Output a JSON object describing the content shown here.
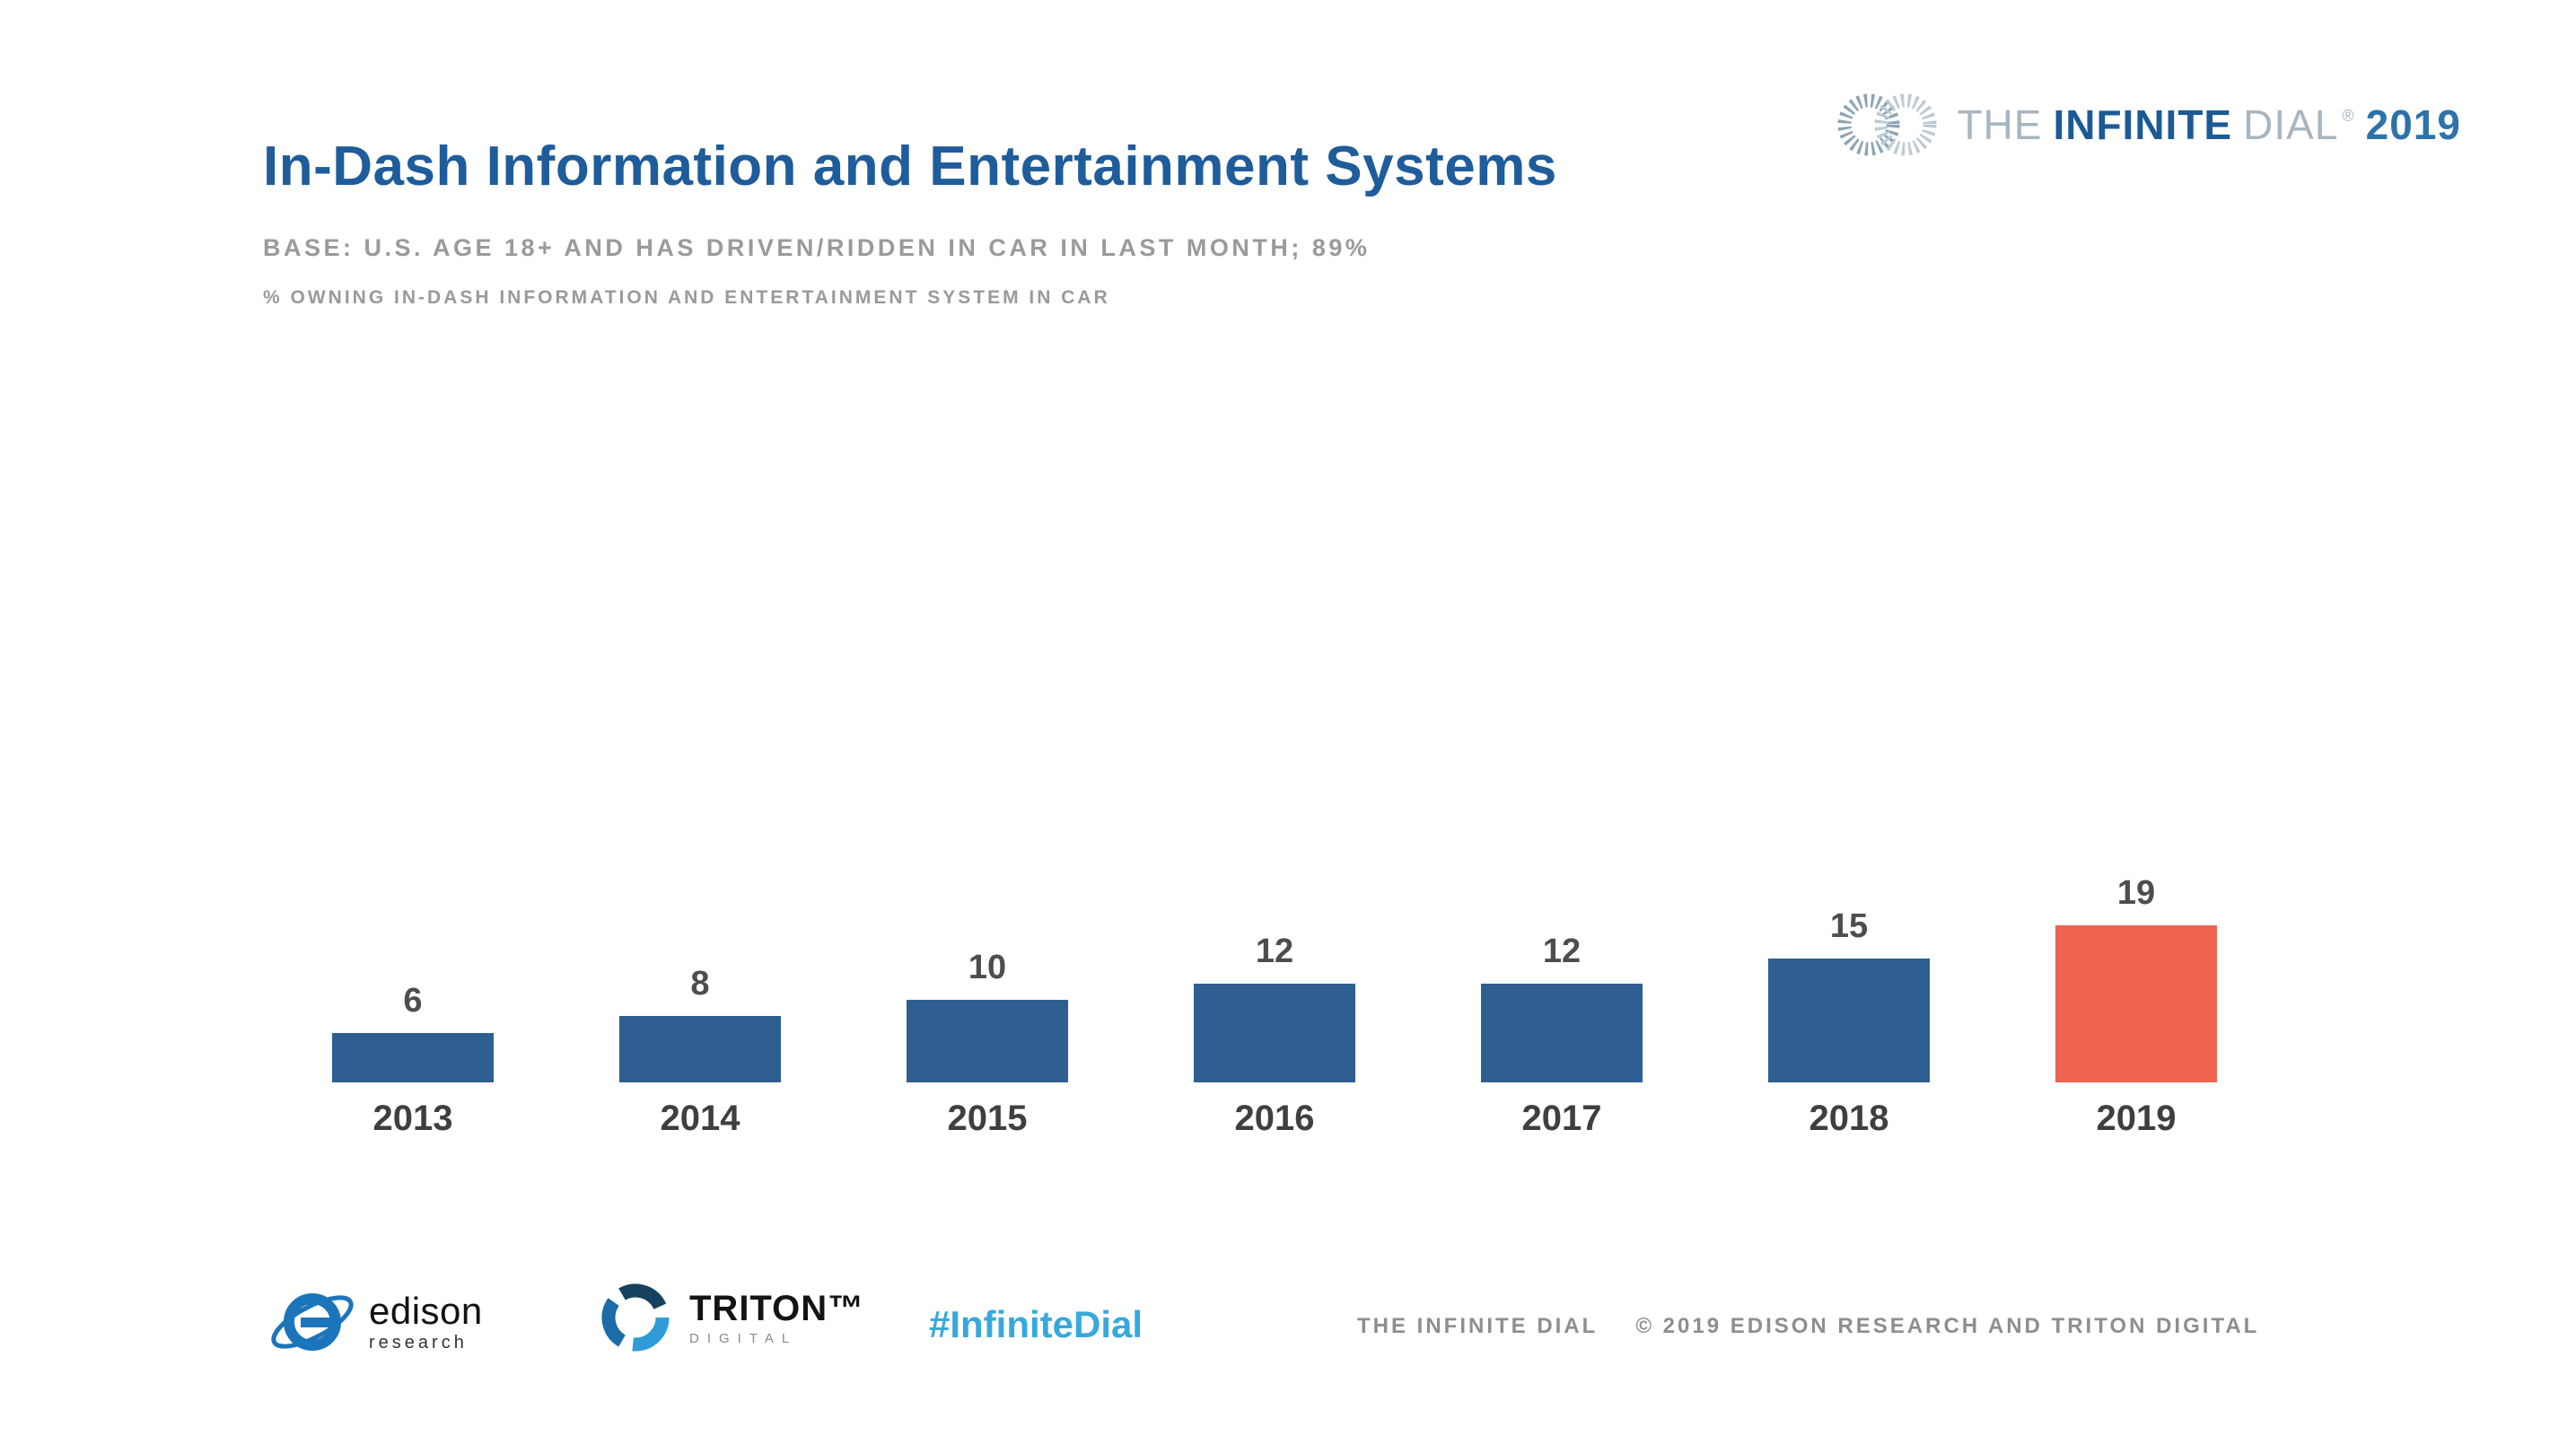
{
  "page": {
    "title": "In-Dash Information and Entertainment Systems",
    "base_line": "BASE: U.S. AGE 18+ AND HAS DRIVEN/RIDDEN IN CAR IN LAST MONTH; 89%",
    "metric_line": "% OWNING IN-DASH INFORMATION AND ENTERTAINMENT SYSTEM IN CAR"
  },
  "brand": {
    "the": "THE",
    "infinite": "INFINITE",
    "dial": "DIAL",
    "reg": "®",
    "year": "2019"
  },
  "chart_data": {
    "type": "bar",
    "categories": [
      "2013",
      "2014",
      "2015",
      "2016",
      "2017",
      "2018",
      "2019"
    ],
    "values": [
      6,
      8,
      10,
      12,
      12,
      15,
      19
    ],
    "title": "In-Dash Information and Entertainment Systems",
    "subtitle": "BASE: U.S. AGE 18+ AND HAS DRIVEN/RIDDEN IN CAR IN LAST MONTH; 89%",
    "note": "% OWNING IN-DASH INFORMATION AND ENTERTAINMENT SYSTEM IN CAR",
    "xlabel": "",
    "ylabel": "% owning in-dash information and entertainment system in car",
    "ylim": [
      0,
      20
    ],
    "grid": false,
    "legend": "none",
    "bar_color": "#2E5F90",
    "highlight_color": "#EE6450",
    "highlight_index": 6,
    "value_labels": true
  },
  "colors": {
    "title_blue": "#1E5C9B",
    "bar_blue": "#2E5F90",
    "highlight_orange": "#EE6450",
    "hashtag_blue": "#36A9DC",
    "muted_gray": "#9A9A9A"
  },
  "footer": {
    "edison_name": "edison",
    "edison_sub": "research",
    "triton_name": "TRITON™",
    "triton_sub": "DIGITAL",
    "hashtag": "#InfiniteDial",
    "credit_left": "THE INFINITE DIAL",
    "credit_right": "© 2019 EDISON RESEARCH AND TRITON DIGITAL"
  }
}
